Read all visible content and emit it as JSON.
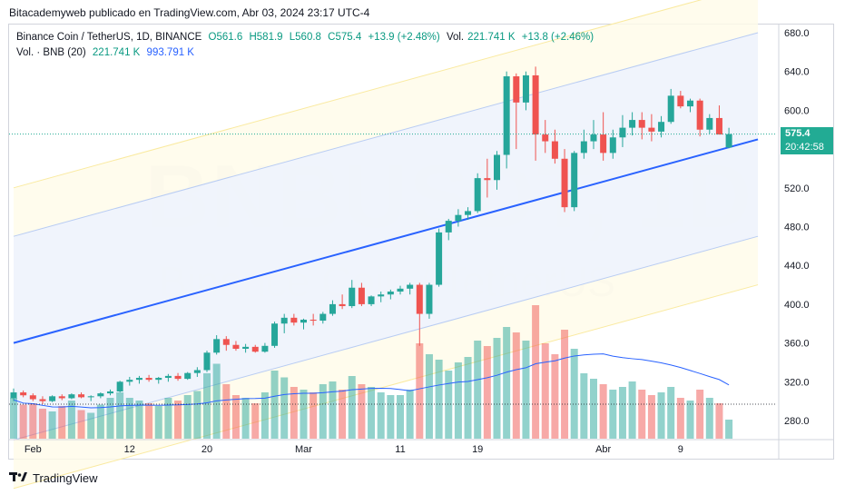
{
  "header": {
    "publisher_line": "Bitacademyweb publicado en TradingView.com, Abr 03, 2024 23:17 UTC-4"
  },
  "legend": {
    "symbol": "Binance Coin / TetherUS, 1D, BINANCE",
    "open": "O561.6",
    "high": "H581.9",
    "low": "L560.8",
    "close": "C575.4",
    "change": "+13.9 (+2.48%)",
    "vol": "Vol.",
    "vol_value": "221.741 K",
    "vol_change": "+13.8 (+2.46%)",
    "vol_indicator": "Vol. · BNB (20)",
    "vol_indicator_value": "221.741 K",
    "vol_ma_value": "993.791 K"
  },
  "watermark": {
    "symbol": "BNBUSDT, 1D",
    "name": "Binance Coin / TetherUS"
  },
  "price_tag": {
    "price": "575.4",
    "countdown": "20:42:58"
  },
  "footer": {
    "brand": "TradingView",
    "logo_icon": "tradingview-logo-icon"
  },
  "colors": {
    "up": "#26a69a",
    "down": "#ef5350",
    "channel": "#2962ff",
    "ma": "#2962ff"
  },
  "chart_data": {
    "type": "candlestick",
    "y_ticks": [
      280,
      320,
      360,
      400,
      440,
      480,
      520,
      560,
      600,
      640,
      680
    ],
    "x_ticks": [
      {
        "label": "Feb",
        "index": 2
      },
      {
        "label": "12",
        "index": 12
      },
      {
        "label": "20",
        "index": 20
      },
      {
        "label": "Mar",
        "index": 30
      },
      {
        "label": "11",
        "index": 40
      },
      {
        "label": "19",
        "index": 48
      },
      {
        "label": "Abr",
        "index": 61
      },
      {
        "label": "9",
        "index": 69
      }
    ],
    "last_price_line": 575.4,
    "candles": [
      [
        303,
        313,
        300,
        309,
        0.3
      ],
      [
        309,
        311,
        304,
        306,
        0.25
      ],
      [
        306,
        308,
        300,
        302,
        0.26
      ],
      [
        302,
        305,
        297,
        300,
        0.22
      ],
      [
        300,
        306,
        299,
        305,
        0.2
      ],
      [
        305,
        307,
        301,
        303,
        0.24
      ],
      [
        303,
        308,
        302,
        307,
        0.28
      ],
      [
        307,
        309,
        303,
        304,
        0.21
      ],
      [
        304,
        306,
        300,
        305,
        0.19
      ],
      [
        305,
        309,
        303,
        308,
        0.25
      ],
      [
        308,
        312,
        306,
        310,
        0.3
      ],
      [
        310,
        321,
        309,
        320,
        0.34
      ],
      [
        320,
        325,
        316,
        322,
        0.3
      ],
      [
        322,
        326,
        318,
        324,
        0.28
      ],
      [
        324,
        327,
        320,
        322,
        0.26
      ],
      [
        322,
        325,
        318,
        324,
        0.24
      ],
      [
        324,
        328,
        320,
        326,
        0.3
      ],
      [
        326,
        329,
        321,
        323,
        0.28
      ],
      [
        323,
        330,
        322,
        329,
        0.32
      ],
      [
        329,
        335,
        325,
        332,
        0.35
      ],
      [
        332,
        352,
        330,
        350,
        0.48
      ],
      [
        350,
        368,
        348,
        364,
        0.55
      ],
      [
        364,
        367,
        352,
        358,
        0.4
      ],
      [
        358,
        362,
        352,
        354,
        0.32
      ],
      [
        354,
        359,
        350,
        356,
        0.3
      ],
      [
        356,
        358,
        350,
        351,
        0.26
      ],
      [
        351,
        360,
        350,
        357,
        0.34
      ],
      [
        357,
        382,
        355,
        380,
        0.5
      ],
      [
        380,
        390,
        370,
        386,
        0.45
      ],
      [
        386,
        390,
        378,
        381,
        0.38
      ],
      [
        381,
        385,
        374,
        384,
        0.36
      ],
      [
        384,
        390,
        378,
        383,
        0.34
      ],
      [
        383,
        392,
        380,
        390,
        0.4
      ],
      [
        390,
        404,
        388,
        400,
        0.42
      ],
      [
        400,
        410,
        395,
        398,
        0.36
      ],
      [
        398,
        425,
        396,
        417,
        0.46
      ],
      [
        417,
        422,
        398,
        400,
        0.4
      ],
      [
        400,
        409,
        398,
        408,
        0.38
      ],
      [
        408,
        413,
        402,
        410,
        0.34
      ],
      [
        410,
        415,
        405,
        413,
        0.32
      ],
      [
        413,
        419,
        410,
        416,
        0.32
      ],
      [
        416,
        422,
        410,
        420,
        0.36
      ],
      [
        420,
        422,
        357,
        390,
        0.7
      ],
      [
        390,
        422,
        385,
        420,
        0.62
      ],
      [
        420,
        478,
        418,
        474,
        0.58
      ],
      [
        474,
        488,
        466,
        486,
        0.5
      ],
      [
        486,
        498,
        480,
        492,
        0.56
      ],
      [
        492,
        500,
        487,
        496,
        0.6
      ],
      [
        496,
        535,
        494,
        530,
        0.72
      ],
      [
        530,
        550,
        510,
        528,
        0.68
      ],
      [
        528,
        558,
        518,
        554,
        0.74
      ],
      [
        554,
        640,
        540,
        635,
        0.82
      ],
      [
        635,
        638,
        560,
        608,
        0.78
      ],
      [
        608,
        640,
        600,
        636,
        0.72
      ],
      [
        636,
        645,
        548,
        575,
        0.98
      ],
      [
        575,
        590,
        556,
        568,
        0.7
      ],
      [
        568,
        580,
        545,
        550,
        0.62
      ],
      [
        550,
        560,
        495,
        500,
        0.8
      ],
      [
        500,
        558,
        496,
        556,
        0.66
      ],
      [
        556,
        580,
        550,
        568,
        0.48
      ],
      [
        568,
        590,
        560,
        575,
        0.44
      ],
      [
        575,
        598,
        548,
        556,
        0.4
      ],
      [
        556,
        580,
        550,
        572,
        0.36
      ],
      [
        572,
        595,
        562,
        582,
        0.38
      ],
      [
        582,
        598,
        574,
        590,
        0.42
      ],
      [
        590,
        598,
        570,
        582,
        0.36
      ],
      [
        582,
        596,
        568,
        578,
        0.32
      ],
      [
        578,
        594,
        572,
        588,
        0.34
      ],
      [
        588,
        622,
        586,
        615,
        0.38
      ],
      [
        615,
        620,
        602,
        604,
        0.3
      ],
      [
        604,
        612,
        598,
        610,
        0.28
      ],
      [
        610,
        612,
        573,
        580,
        0.36
      ],
      [
        580,
        596,
        576,
        592,
        0.3
      ],
      [
        592,
        605,
        575,
        575,
        0.26
      ],
      [
        561.6,
        581.9,
        560.8,
        575.4,
        0.14
      ]
    ],
    "channel": {
      "start_index": 0,
      "end_index": 77,
      "mid": [
        360,
        570
      ],
      "upper": [
        470,
        680
      ],
      "lower": [
        260,
        470
      ]
    },
    "outer_channel": {
      "upper": [
        520,
        730
      ],
      "lower": [
        210,
        420
      ]
    }
  }
}
